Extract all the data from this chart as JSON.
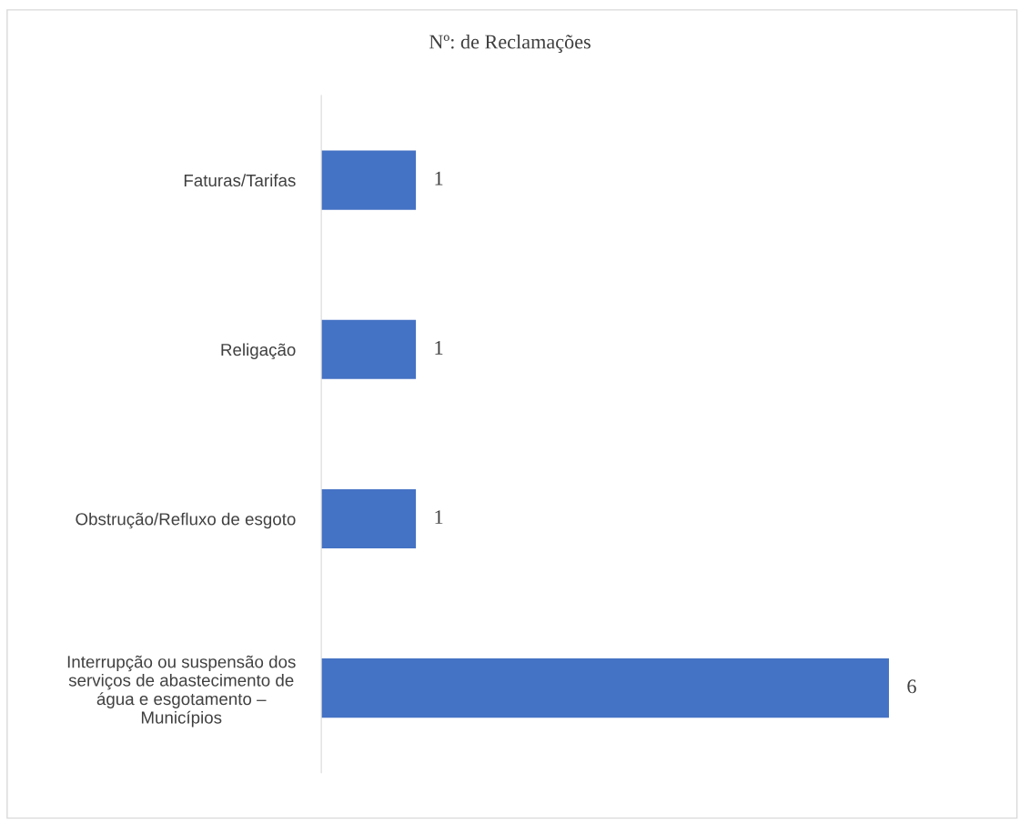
{
  "chart_data": {
    "type": "bar",
    "orientation": "horizontal",
    "title": "Nº: de Reclamações",
    "categories": [
      "Faturas/Tarifas",
      "Religação",
      "Obstrução/Refluxo de esgoto",
      "Interrupção ou suspensão dos\nserviços de abastecimento de\nágua e esgotamento –\nMunicípios"
    ],
    "values": [
      1,
      1,
      1,
      6
    ],
    "color": "#4472c4",
    "data_labels": true,
    "grid": false,
    "legend": false
  }
}
